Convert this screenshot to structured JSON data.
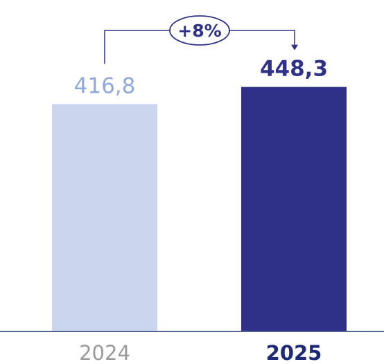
{
  "chart_data": {
    "type": "bar",
    "categories": [
      "2024",
      "2025"
    ],
    "values": [
      416.8,
      448.3
    ],
    "value_labels": [
      "416,8",
      "448,3"
    ],
    "growth_label": "+8%",
    "title": "",
    "xlabel": "",
    "ylabel": "",
    "ylim": [
      0,
      500
    ],
    "grid": false,
    "legend": "none",
    "colors": {
      "bar_2024": "#cbd6ee",
      "bar_2025": "#2e3187",
      "label_2024": "#8fa8de",
      "label_2025": "#2e3187",
      "category_2024": "#9a9a9a",
      "category_2025": "#1e2a78",
      "axis": "#1a2e6e",
      "arrow": "#2e3187"
    }
  }
}
